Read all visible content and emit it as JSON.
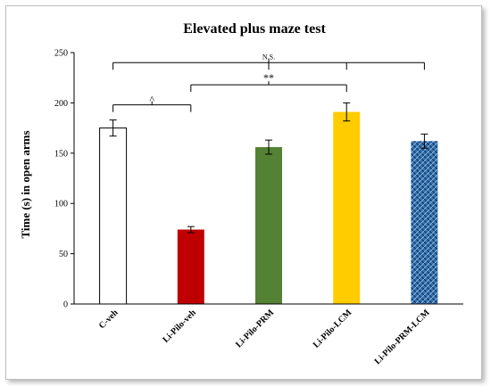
{
  "chart_data": {
    "type": "bar",
    "title": "Elevated plus maze test",
    "ylabel": "Time (s) in open arms",
    "xlabel": "",
    "ylim": [
      0,
      250
    ],
    "yticks": [
      0,
      50,
      100,
      150,
      200,
      250
    ],
    "categories": [
      "C-veh",
      "Li-Pilo-veh",
      "Li-Pilo-PRM",
      "Li-Pilo-LCM",
      "Li-Pilo-PRM-LCM"
    ],
    "values": [
      175,
      74,
      156,
      191,
      162
    ],
    "errors": [
      8,
      3,
      7,
      9,
      7
    ],
    "colors": [
      "#ffffff",
      "#c00000",
      "#548235",
      "#ffcc00",
      "#2e75b6"
    ],
    "patterns": [
      "none",
      "none",
      "none",
      "none",
      "crosshatch"
    ],
    "annotations": [
      {
        "label": "N.S.",
        "from": "C-veh",
        "to": "Li-Pilo-PRM-LCM",
        "inner": [
          "Li-Pilo-PRM",
          "Li-Pilo-LCM"
        ]
      },
      {
        "label": "**",
        "from": "Li-Pilo-veh",
        "to": "Li-Pilo-LCM"
      },
      {
        "label": "^",
        "from": "C-veh",
        "to": "Li-Pilo-veh"
      }
    ]
  }
}
